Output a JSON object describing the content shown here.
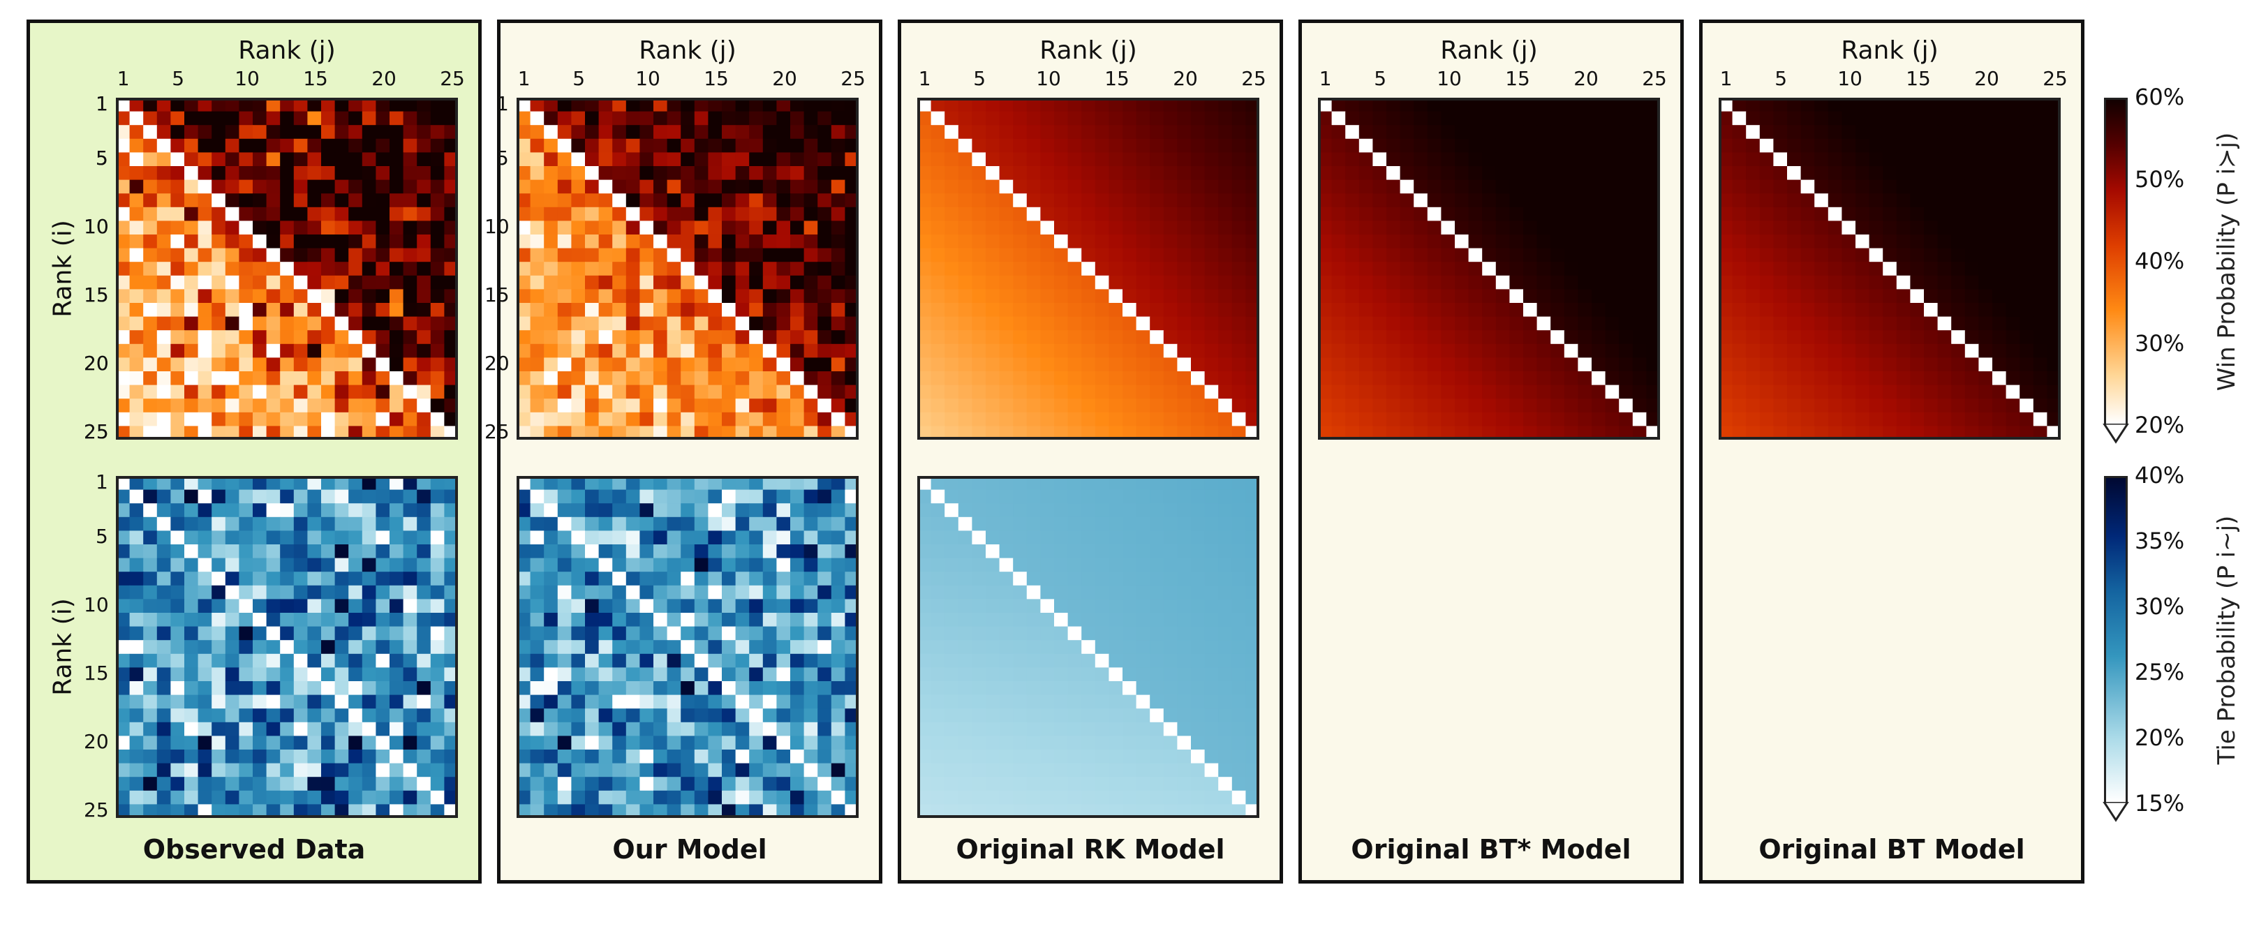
{
  "chart_data": {
    "type": "heatmap",
    "panel_titles": [
      "Observed Data",
      "Our Model",
      "Original RK Model",
      "Original BT* Model",
      "Original BT Model"
    ],
    "highlight_panel": "Observed Data",
    "colors": {
      "panel_bg": "#fbf9ea",
      "highlight_bg": "#e7f6c8",
      "diagonal": "#ffffff"
    },
    "axis": {
      "x_title": "Rank (j)",
      "y_title": "Rank (i)",
      "ticks": [
        "1",
        "5",
        "10",
        "15",
        "20",
        "25"
      ],
      "tick_positions": [
        1,
        5,
        10,
        15,
        20,
        25
      ],
      "n": 25
    },
    "win_colorbar": {
      "label": "Win Probability (P i≻j)",
      "ticks": [
        "20%",
        "30%",
        "40%",
        "50%",
        "60%"
      ],
      "range": [
        0.2,
        0.6
      ],
      "colormap": "gist_heat_r"
    },
    "tie_colorbar": {
      "label": "Tie Probability (P i~j)",
      "ticks": [
        "15%",
        "20%",
        "25%",
        "30%",
        "35%",
        "40%"
      ],
      "range": [
        0.15,
        0.4
      ],
      "colormap": "ocean_r"
    },
    "win_matrices": {
      "Observed Data": {
        "upper_mean": 0.5,
        "lower_mean": 0.27,
        "noise": 0.085
      },
      "Our Model": {
        "upper_mean": 0.5,
        "lower_mean": 0.27,
        "noise": 0.06
      },
      "Original RK Model": {
        "upper_mean": 0.46,
        "lower_mean": 0.29,
        "noise": 0.0
      },
      "Original BT* Model": {
        "upper_mean": 0.56,
        "lower_mean": 0.44,
        "noise": 0.0
      },
      "Original BT Model": {
        "upper_mean": 0.56,
        "lower_mean": 0.44,
        "noise": 0.0
      }
    },
    "tie_matrices": {
      "Observed Data": {
        "mean": 0.265,
        "noise": 0.06
      },
      "Our Model": {
        "mean": 0.265,
        "noise": 0.055
      },
      "Original RK Model": {
        "mean": 0.23,
        "noise": 0.0
      }
    }
  }
}
